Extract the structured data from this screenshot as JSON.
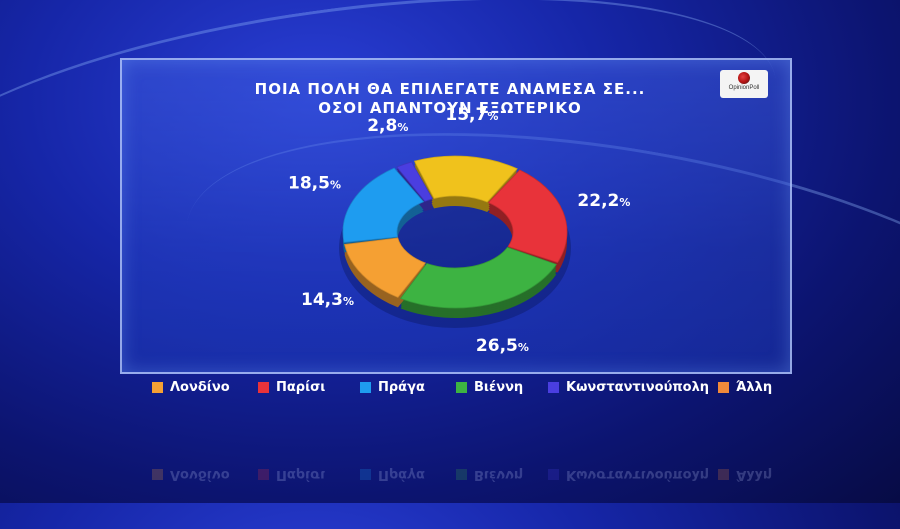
{
  "title": {
    "line1": "ΠΟΙΑ ΠΟΛΗ ΘΑ ΕΠΙΛΕΓΑΤΕ ΑΝΑΜΕΣΑ ΣΕ...",
    "line2": "ΟΣΟΙ ΑΠΑΝΤΟΥΝ ΕΞΩΤΕΡΙΚΟ"
  },
  "logo": {
    "text": "OpinionPoll"
  },
  "chart_data": {
    "type": "pie",
    "variant": "donut",
    "labels": [
      "Λονδίνο",
      "Παρίσι",
      "Πράγα",
      "Βιέννη",
      "Κωνσταντινούπολη",
      "Άλλη"
    ],
    "values": [
      14.3,
      22.2,
      18.5,
      26.5,
      2.8,
      15.7
    ],
    "display_values": [
      "14,3",
      "22,2",
      "18,5",
      "26,5",
      "2,8",
      "15,7"
    ],
    "unit": "%",
    "colors": [
      "#f5a033",
      "#e8333a",
      "#1e9cf0",
      "#3db342",
      "#4a3ee0",
      "#f0c21c"
    ],
    "legend_colors": [
      "#f5a033",
      "#e8333a",
      "#1e9cf0",
      "#3db342",
      "#4a3ee0",
      "#f0893a"
    ],
    "legend_position": "bottom"
  }
}
